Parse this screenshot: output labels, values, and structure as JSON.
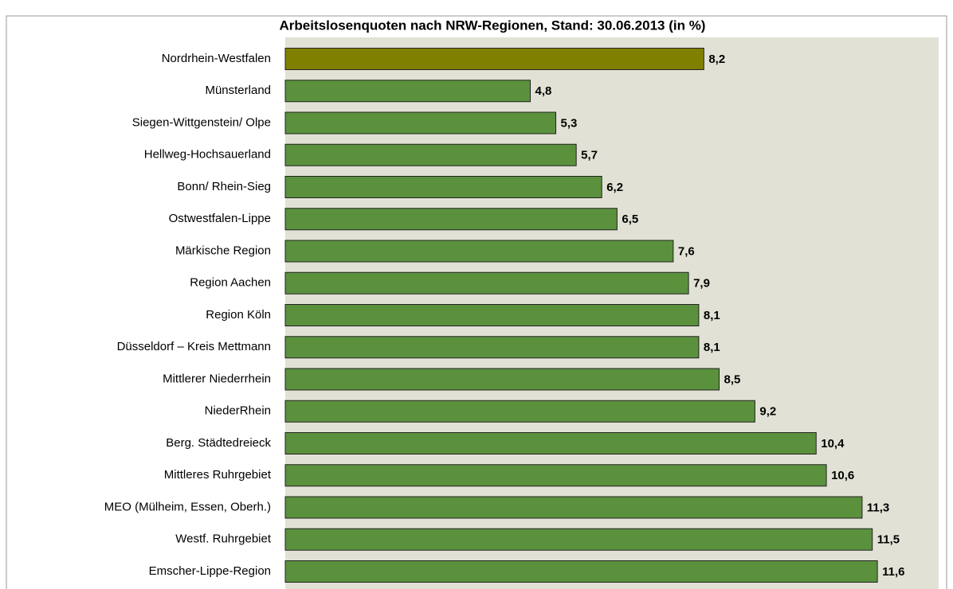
{
  "chart_data": {
    "type": "hbar",
    "title": "Arbeitslosenquoten nach NRW-Regionen, Stand: 30.06.2013 (in %)",
    "categories": [
      "Nordrhein-Westfalen",
      "Münsterland",
      "Siegen-Wittgenstein/ Olpe",
      "Hellweg-Hochsauerland",
      "Bonn/ Rhein-Sieg",
      "Ostwestfalen-Lippe",
      "Märkische Region",
      "Region Aachen",
      "Region Köln",
      "Düsseldorf – Kreis Mettmann",
      "Mittlerer Niederrhein",
      "NiederRhein",
      "Berg. Städtedreieck",
      "Mittleres Ruhrgebiet",
      "MEO (Mülheim, Essen, Oberh.)",
      "Westf. Ruhrgebiet",
      "Emscher-Lippe-Region"
    ],
    "values": [
      8.2,
      4.8,
      5.3,
      5.7,
      6.2,
      6.5,
      7.6,
      7.9,
      8.1,
      8.1,
      8.5,
      9.2,
      10.4,
      10.6,
      11.3,
      11.5,
      11.6
    ],
    "value_labels": [
      "8,2",
      "4,8",
      "5,3",
      "5,7",
      "6,2",
      "6,5",
      "7,6",
      "7,9",
      "8,1",
      "8,1",
      "8,5",
      "9,2",
      "10,4",
      "10,6",
      "11,3",
      "11,5",
      "11,6"
    ],
    "colors": [
      "#808000",
      "#5b913d",
      "#5b913d",
      "#5b913d",
      "#5b913d",
      "#5b913d",
      "#5b913d",
      "#5b913d",
      "#5b913d",
      "#5b913d",
      "#5b913d",
      "#5b913d",
      "#5b913d",
      "#5b913d",
      "#5b913d",
      "#5b913d",
      "#5b913d"
    ],
    "xlim": [
      0,
      12.8
    ]
  }
}
